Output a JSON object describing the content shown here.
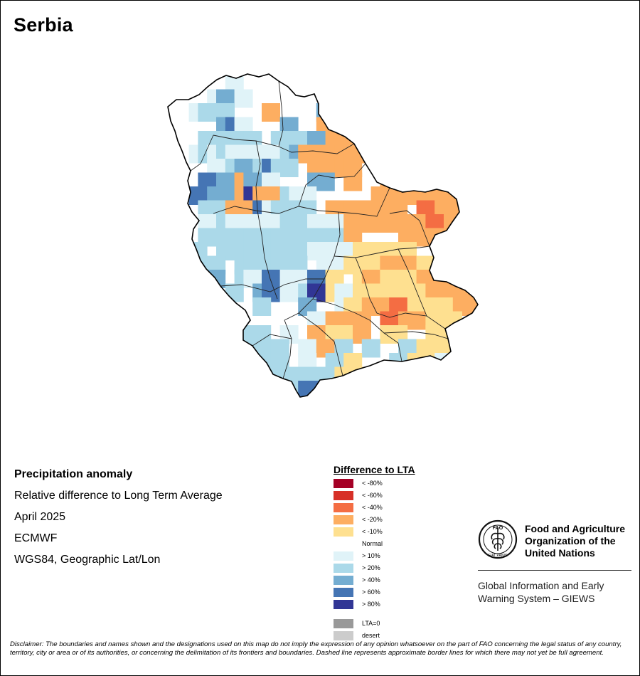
{
  "title": "Serbia",
  "info": {
    "heading": "Precipitation anomaly",
    "lines": [
      "Relative difference to Long Term Average",
      "April 2025",
      "ECMWF",
      "WGS84, Geographic Lat/Lon"
    ]
  },
  "legend": {
    "title": "Difference to LTA",
    "classes": [
      {
        "label": "< -80%",
        "color": "#a50026"
      },
      {
        "label": "< -60%",
        "color": "#d73027"
      },
      {
        "label": "< -40%",
        "color": "#f46d43"
      },
      {
        "label": "< -20%",
        "color": "#fdae61"
      },
      {
        "label": "< -10%",
        "color": "#fee090"
      },
      {
        "label": "Normal",
        "color": "#ffffff"
      },
      {
        "label": "> 10%",
        "color": "#e0f3f8"
      },
      {
        "label": "> 20%",
        "color": "#abd9e9"
      },
      {
        "label": "> 40%",
        "color": "#74add1"
      },
      {
        "label": "> 60%",
        "color": "#4575b4"
      },
      {
        "label": "> 80%",
        "color": "#313695"
      }
    ],
    "extra": [
      {
        "label": "LTA=0",
        "color": "#999999"
      },
      {
        "label": "desert",
        "color": "#cccccc"
      }
    ]
  },
  "organization": {
    "name_lines": [
      "Food and Agriculture",
      "Organization of the",
      "United Nations"
    ],
    "logo_text": "FAO",
    "logo_motto": "FIAT PANIS",
    "system_lines": [
      "Global Information and Early",
      "Warning System – GIEWS"
    ]
  },
  "disclaimer": "Disclaimer: The boundaries and names shown and the designations used on this map do not imply the expression of any opinion whatsoever on the part of FAO concerning the legal status of any country, territory, city or area or of its authorities, or concerning the delimitation of its frontiers and boundaries. Dashed line represents approximate border lines for which there may not yet be full agreement.",
  "grid": {
    "rows": [
      "......1.......................",
      "....13.1.....................",
      "..1222....4.....3..............",
      ".....3A1....3...444.4............",
      "...2.2.22..2.2.3.4.4..............",
      "..1212111.1.2344.444.4.............",
      "....1123.2A22..44444...4.............",
      "...9.3.43.1....33..4...44.44..4.....",
      "..9933.4X44.211.......44.4444.4......",
      "...22.44.A122.2..4.44.4.4..5544.......",
      "...1.211.1.122.111.44.44.44.5.444.444..",
      "...22.222222.22.22.4.....4.444.4444......",
      "..2..222222222.1111.3.33.3...4.44.4.....",
      "..2.2..22.2222..11.333.4.4.33.4.4.4.......",
      "....3..21.9.1.1A.3..3443.3.4.4.4.4..........",
      "...1..2..39.1.2X.31.3.33.3334.4.4.4..........",
      "....3....2....3...13.4.45.33.3.44.4..........",
      "...............1.4.44..5.44.3.3..4.4.4.......",
      "......22.2..1..4.33.4..33...3.3.3.44.........",
      "....1.1.2.22..1.4.2..2...2.3.3.1.2.4.........",
      "......1.2222..1..2.3....2.3..1.2.2.2.4.4......",
      "......2.2.222.2.2.3.3....1.3.2.2222.4........",
      "........99.22.AA.9..............................",
      "........................................"
    ]
  }
}
